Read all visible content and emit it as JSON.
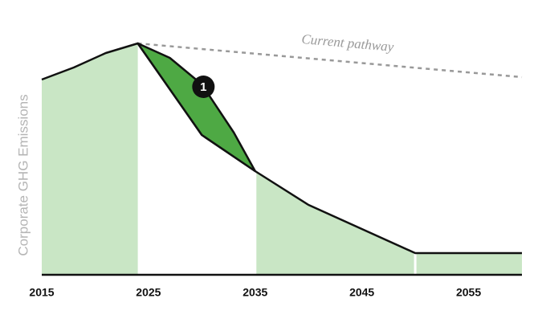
{
  "chart_data": {
    "type": "area",
    "y_label": "Corporate GHG Emissions",
    "annotations": [
      "Current pathway",
      "1"
    ],
    "xlim": [
      2015,
      2060
    ],
    "xticks": [
      2015,
      2025,
      2035,
      2045,
      2055
    ],
    "ylim": [
      0,
      100
    ],
    "shaded_spans": [
      [
        2015,
        2024
      ],
      [
        2035,
        2050
      ],
      [
        2050,
        2060
      ]
    ],
    "shade_color": "#c9e6c5",
    "series": [
      {
        "x": [
          2015,
          2018,
          2021,
          2024,
          2030,
          2035,
          2040,
          2050,
          2060
        ],
        "values": [
          81,
          86,
          92,
          96,
          58,
          43,
          29,
          9,
          9
        ],
        "color": "#111111"
      },
      {
        "x": [
          2024,
          2060
        ],
        "values": [
          96,
          82
        ],
        "color": "#999999",
        "dashed": true
      },
      {
        "x": [
          2024,
          2027,
          2030,
          2033,
          2035
        ],
        "values": [
          96,
          90,
          79,
          59,
          43
        ],
        "color": "#4ea944",
        "filled_to": 0
      }
    ]
  }
}
